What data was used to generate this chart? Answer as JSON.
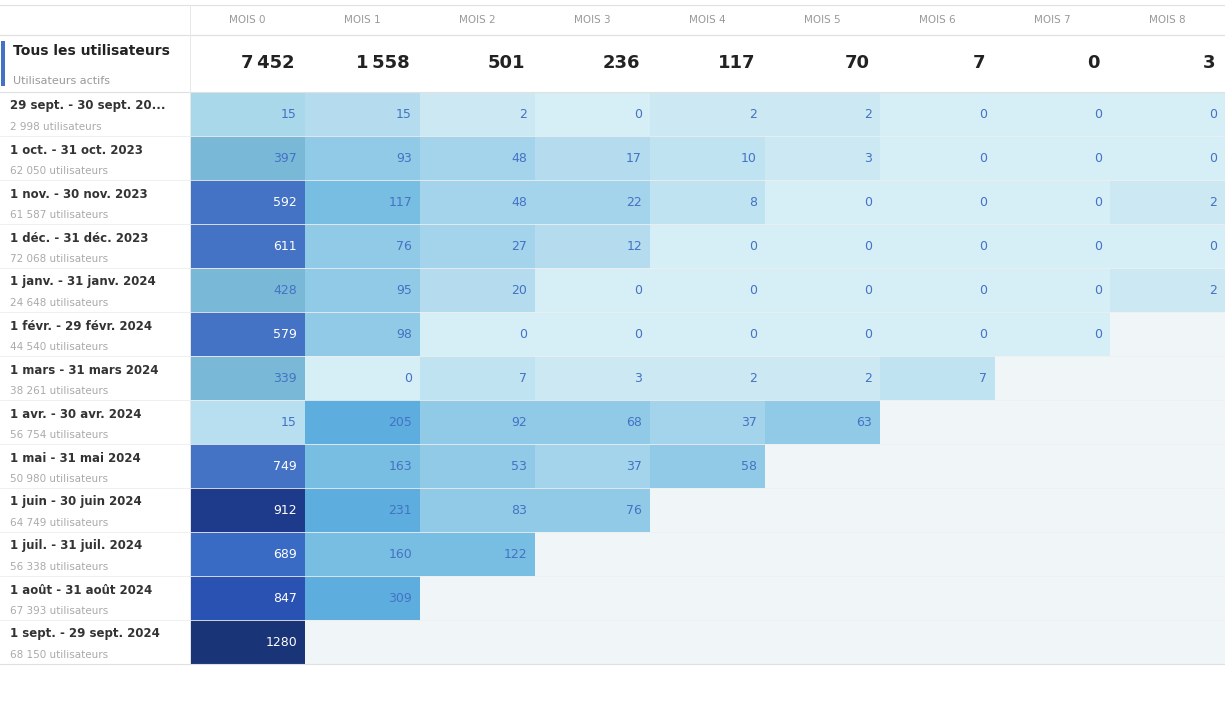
{
  "title_main": "Tous les utilisateurs",
  "title_sub": "Utilisateurs actifs",
  "col_headers": [
    "MOIS 0",
    "MOIS 1",
    "MOIS 2",
    "MOIS 3",
    "MOIS 4",
    "MOIS 5",
    "MOIS 6",
    "MOIS 7",
    "MOIS 8"
  ],
  "summary_row": [
    7452,
    1558,
    501,
    236,
    117,
    70,
    7,
    0,
    3
  ],
  "row_labels": [
    [
      "29 sept. - 30 sept. 20...",
      "2 998 utilisateurs"
    ],
    [
      "1 oct. - 31 oct. 2023",
      "62 050 utilisateurs"
    ],
    [
      "1 nov. - 30 nov. 2023",
      "61 587 utilisateurs"
    ],
    [
      "1 déc. - 31 déc. 2023",
      "72 068 utilisateurs"
    ],
    [
      "1 janv. - 31 janv. 2024",
      "24 648 utilisateurs"
    ],
    [
      "1 févr. - 29 févr. 2024",
      "44 540 utilisateurs"
    ],
    [
      "1 mars - 31 mars 2024",
      "38 261 utilisateurs"
    ],
    [
      "1 avr. - 30 avr. 2024",
      "56 754 utilisateurs"
    ],
    [
      "1 mai - 31 mai 2024",
      "50 980 utilisateurs"
    ],
    [
      "1 juin - 30 juin 2024",
      "64 749 utilisateurs"
    ],
    [
      "1 juil. - 31 juil. 2024",
      "56 338 utilisateurs"
    ],
    [
      "1 août - 31 août 2024",
      "67 393 utilisateurs"
    ],
    [
      "1 sept. - 29 sept. 2024",
      "68 150 utilisateurs"
    ]
  ],
  "data": [
    [
      15,
      15,
      2,
      0,
      2,
      2,
      0,
      0,
      0
    ],
    [
      397,
      93,
      48,
      17,
      10,
      3,
      0,
      0,
      0
    ],
    [
      592,
      117,
      48,
      22,
      8,
      0,
      0,
      0,
      2
    ],
    [
      611,
      76,
      27,
      12,
      0,
      0,
      0,
      0,
      0
    ],
    [
      428,
      95,
      20,
      0,
      0,
      0,
      0,
      0,
      2
    ],
    [
      579,
      98,
      0,
      0,
      0,
      0,
      0,
      0,
      null
    ],
    [
      339,
      0,
      7,
      3,
      2,
      2,
      7,
      null,
      null
    ],
    [
      15,
      205,
      92,
      68,
      37,
      63,
      null,
      null,
      null
    ],
    [
      749,
      163,
      53,
      37,
      58,
      null,
      null,
      null,
      null
    ],
    [
      912,
      231,
      83,
      76,
      null,
      null,
      null,
      null,
      null
    ],
    [
      689,
      160,
      122,
      null,
      null,
      null,
      null,
      null,
      null
    ],
    [
      847,
      309,
      null,
      null,
      null,
      null,
      null,
      null,
      null
    ],
    [
      1280,
      null,
      null,
      null,
      null,
      null,
      null,
      null,
      null
    ]
  ],
  "mois0_colors": [
    "#a8d8ea",
    "#7ab8d8",
    "#4472c4",
    "#4472c4",
    "#7ab8d8",
    "#4472c4",
    "#7ab8d8",
    "#b8dff0",
    "#4472c4",
    "#1e3a8a",
    "#3a6bc4",
    "#2952b3",
    "#1a3478"
  ],
  "left_bar_color": "#4472c4",
  "header_text_color": "#999999",
  "summary_title_color": "#222222",
  "summary_sub_color": "#999999",
  "summary_val_color": "#222222",
  "row_label_color": "#333333",
  "row_sub_color": "#aaaaaa",
  "light_cell_bg": "#d6eef5",
  "lighter_cell_bg": "#e8f5fb",
  "empty_cell_bg": "#f0f5f8",
  "data_text_blue": "#4472c4",
  "data_text_white": "#ffffff"
}
